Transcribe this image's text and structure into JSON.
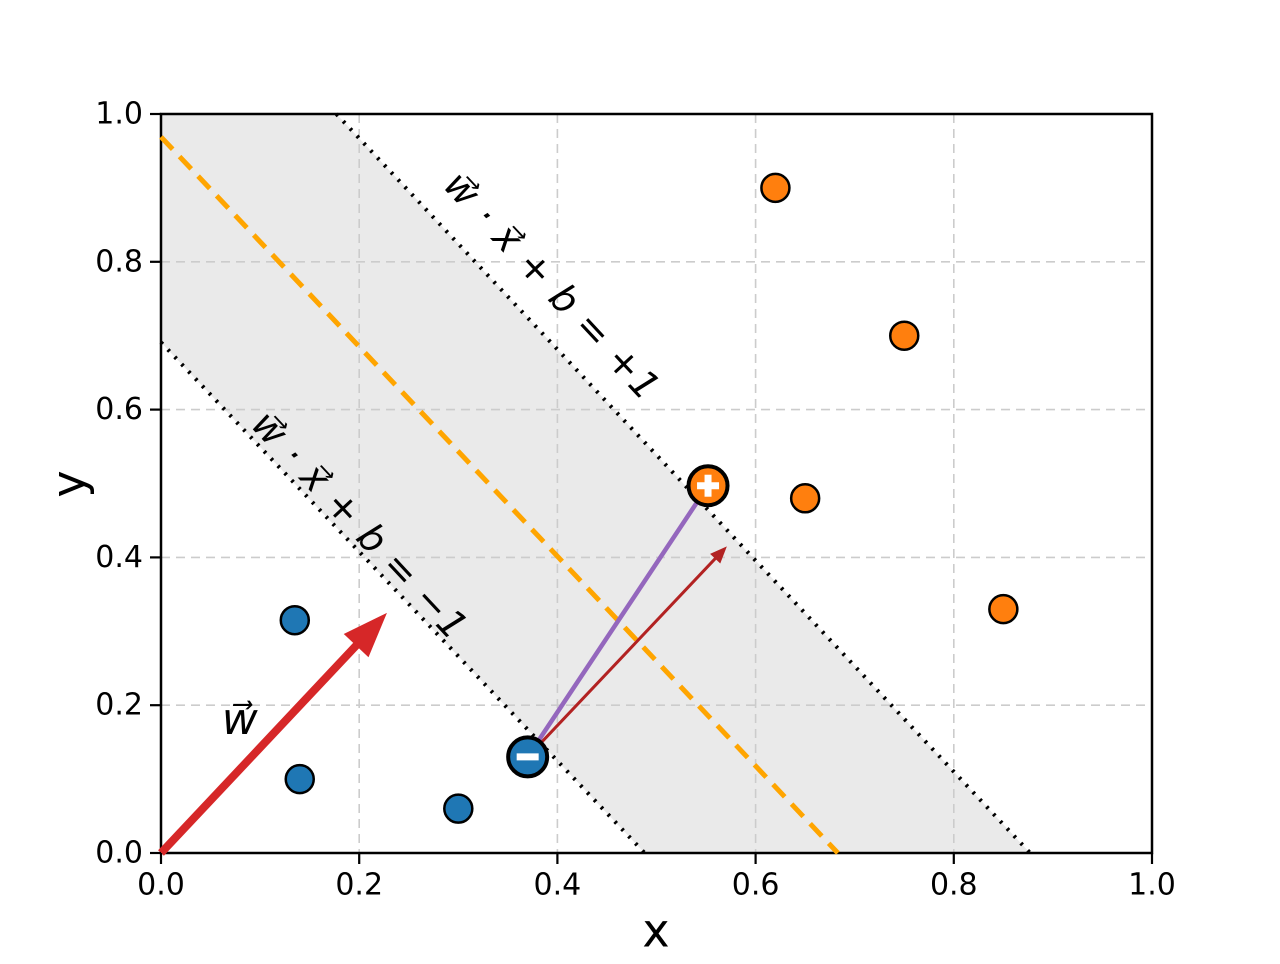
{
  "figure": {
    "background": "#ffffff",
    "description": "SVM maximum-margin illustration plot"
  },
  "chart_data": {
    "type": "scatter",
    "title": "",
    "xlabel": "x",
    "ylabel": "y",
    "xlim": [
      0.0,
      1.0
    ],
    "ylim": [
      0.0,
      1.0
    ],
    "grid": {
      "show": true,
      "color": "#cccccc",
      "dash": "9 6",
      "width": 1.6
    },
    "ticks": {
      "x_values": [
        0.0,
        0.2,
        0.4,
        0.6,
        0.8,
        1.0
      ],
      "x_labels": [
        "0.0",
        "0.2",
        "0.4",
        "0.6",
        "0.8",
        "1.0"
      ],
      "y_values": [
        0.0,
        0.2,
        0.4,
        0.6,
        0.8,
        1.0
      ],
      "y_labels": [
        "0.0",
        "0.2",
        "0.4",
        "0.6",
        "0.8",
        "1.0"
      ]
    },
    "margin_band": {
      "fill": "#eaeaea",
      "polygon": [
        [
          0.0,
          0.691
        ],
        [
          0.488,
          0.0
        ],
        [
          0.877,
          0.0
        ],
        [
          0.177,
          1.0
        ],
        [
          0.0,
          1.0
        ]
      ]
    },
    "lines": [
      {
        "name": "decision-boundary",
        "from": [
          0.0,
          0.969
        ],
        "to": [
          0.683,
          0.0
        ],
        "color": "#FFA500",
        "width": 5,
        "dash": "17 10"
      },
      {
        "name": "margin-line-plus-one",
        "from": [
          0.177,
          1.0
        ],
        "to": [
          0.877,
          0.0
        ],
        "color": "#000000",
        "width": 4,
        "dash": "2.5 7.5"
      },
      {
        "name": "margin-line-minus-one",
        "from": [
          0.0,
          0.691
        ],
        "to": [
          0.488,
          0.0
        ],
        "color": "#000000",
        "width": 4,
        "dash": "2.5 7.5"
      }
    ],
    "connectors": [
      {
        "name": "support-vector-connector",
        "from": [
          0.37,
          0.13
        ],
        "to": [
          0.552,
          0.497
        ],
        "color": "#9467bd",
        "width": 4.5
      }
    ],
    "arrows": [
      {
        "name": "weight-vector-arrow",
        "from": [
          0.0,
          0.0
        ],
        "to": [
          0.228,
          0.325
        ],
        "color": "#d62728",
        "shaft_width": 8,
        "head_length": 45,
        "head_half_width": 17
      },
      {
        "name": "margin-width-arrow",
        "from": [
          0.37,
          0.13
        ],
        "to": [
          0.571,
          0.415
        ],
        "color": "#b22222",
        "shaft_width": 3,
        "head_length": 17,
        "head_half_width": 7
      }
    ],
    "series": [
      {
        "name": "negative-class",
        "marker": "circle",
        "marker_color": "#1f77b4",
        "edge_color": "#000000",
        "radius": 14,
        "edge_width": 2.5,
        "points": [
          [
            0.135,
            0.315
          ],
          [
            0.14,
            0.1
          ],
          [
            0.3,
            0.06
          ]
        ]
      },
      {
        "name": "positive-class",
        "marker": "circle",
        "marker_color": "#ff7f0e",
        "edge_color": "#000000",
        "radius": 14,
        "edge_width": 2.5,
        "points": [
          [
            0.62,
            0.9
          ],
          [
            0.75,
            0.7
          ],
          [
            0.65,
            0.48
          ],
          [
            0.85,
            0.33
          ]
        ]
      }
    ],
    "support_vectors": [
      {
        "name": "positive-support-vector",
        "glyph": "+",
        "point": [
          0.552,
          0.497
        ],
        "fill": "#ff7f0e",
        "edge_color": "#000000",
        "glyph_color": "#ffffff",
        "radius": 19.5,
        "edge_width": 4
      },
      {
        "name": "negative-support-vector",
        "glyph": "−",
        "point": [
          0.37,
          0.13
        ],
        "fill": "#1f77b4",
        "edge_color": "#000000",
        "glyph_color": "#ffffff",
        "radius": 19.5,
        "edge_width": 4
      }
    ],
    "annotations": [
      {
        "name": "margin-plus-one-label",
        "text": "w⃗ · x⃗ + b = +1",
        "x": 0.393,
        "y": 0.765,
        "rotation": 47,
        "size": 38,
        "color": "#000000",
        "italic": true
      },
      {
        "name": "margin-minus-one-label",
        "text": "w⃗ · x⃗ + b = −1",
        "x": 0.199,
        "y": 0.441,
        "rotation": 47,
        "size": 38,
        "color": "#000000",
        "italic": true
      },
      {
        "name": "weight-vector-label",
        "text": "w⃗",
        "x": 0.08,
        "y": 0.177,
        "rotation": 0,
        "size": 44,
        "color": "#d62728",
        "italic": true
      }
    ],
    "legend": {
      "show": false
    }
  }
}
